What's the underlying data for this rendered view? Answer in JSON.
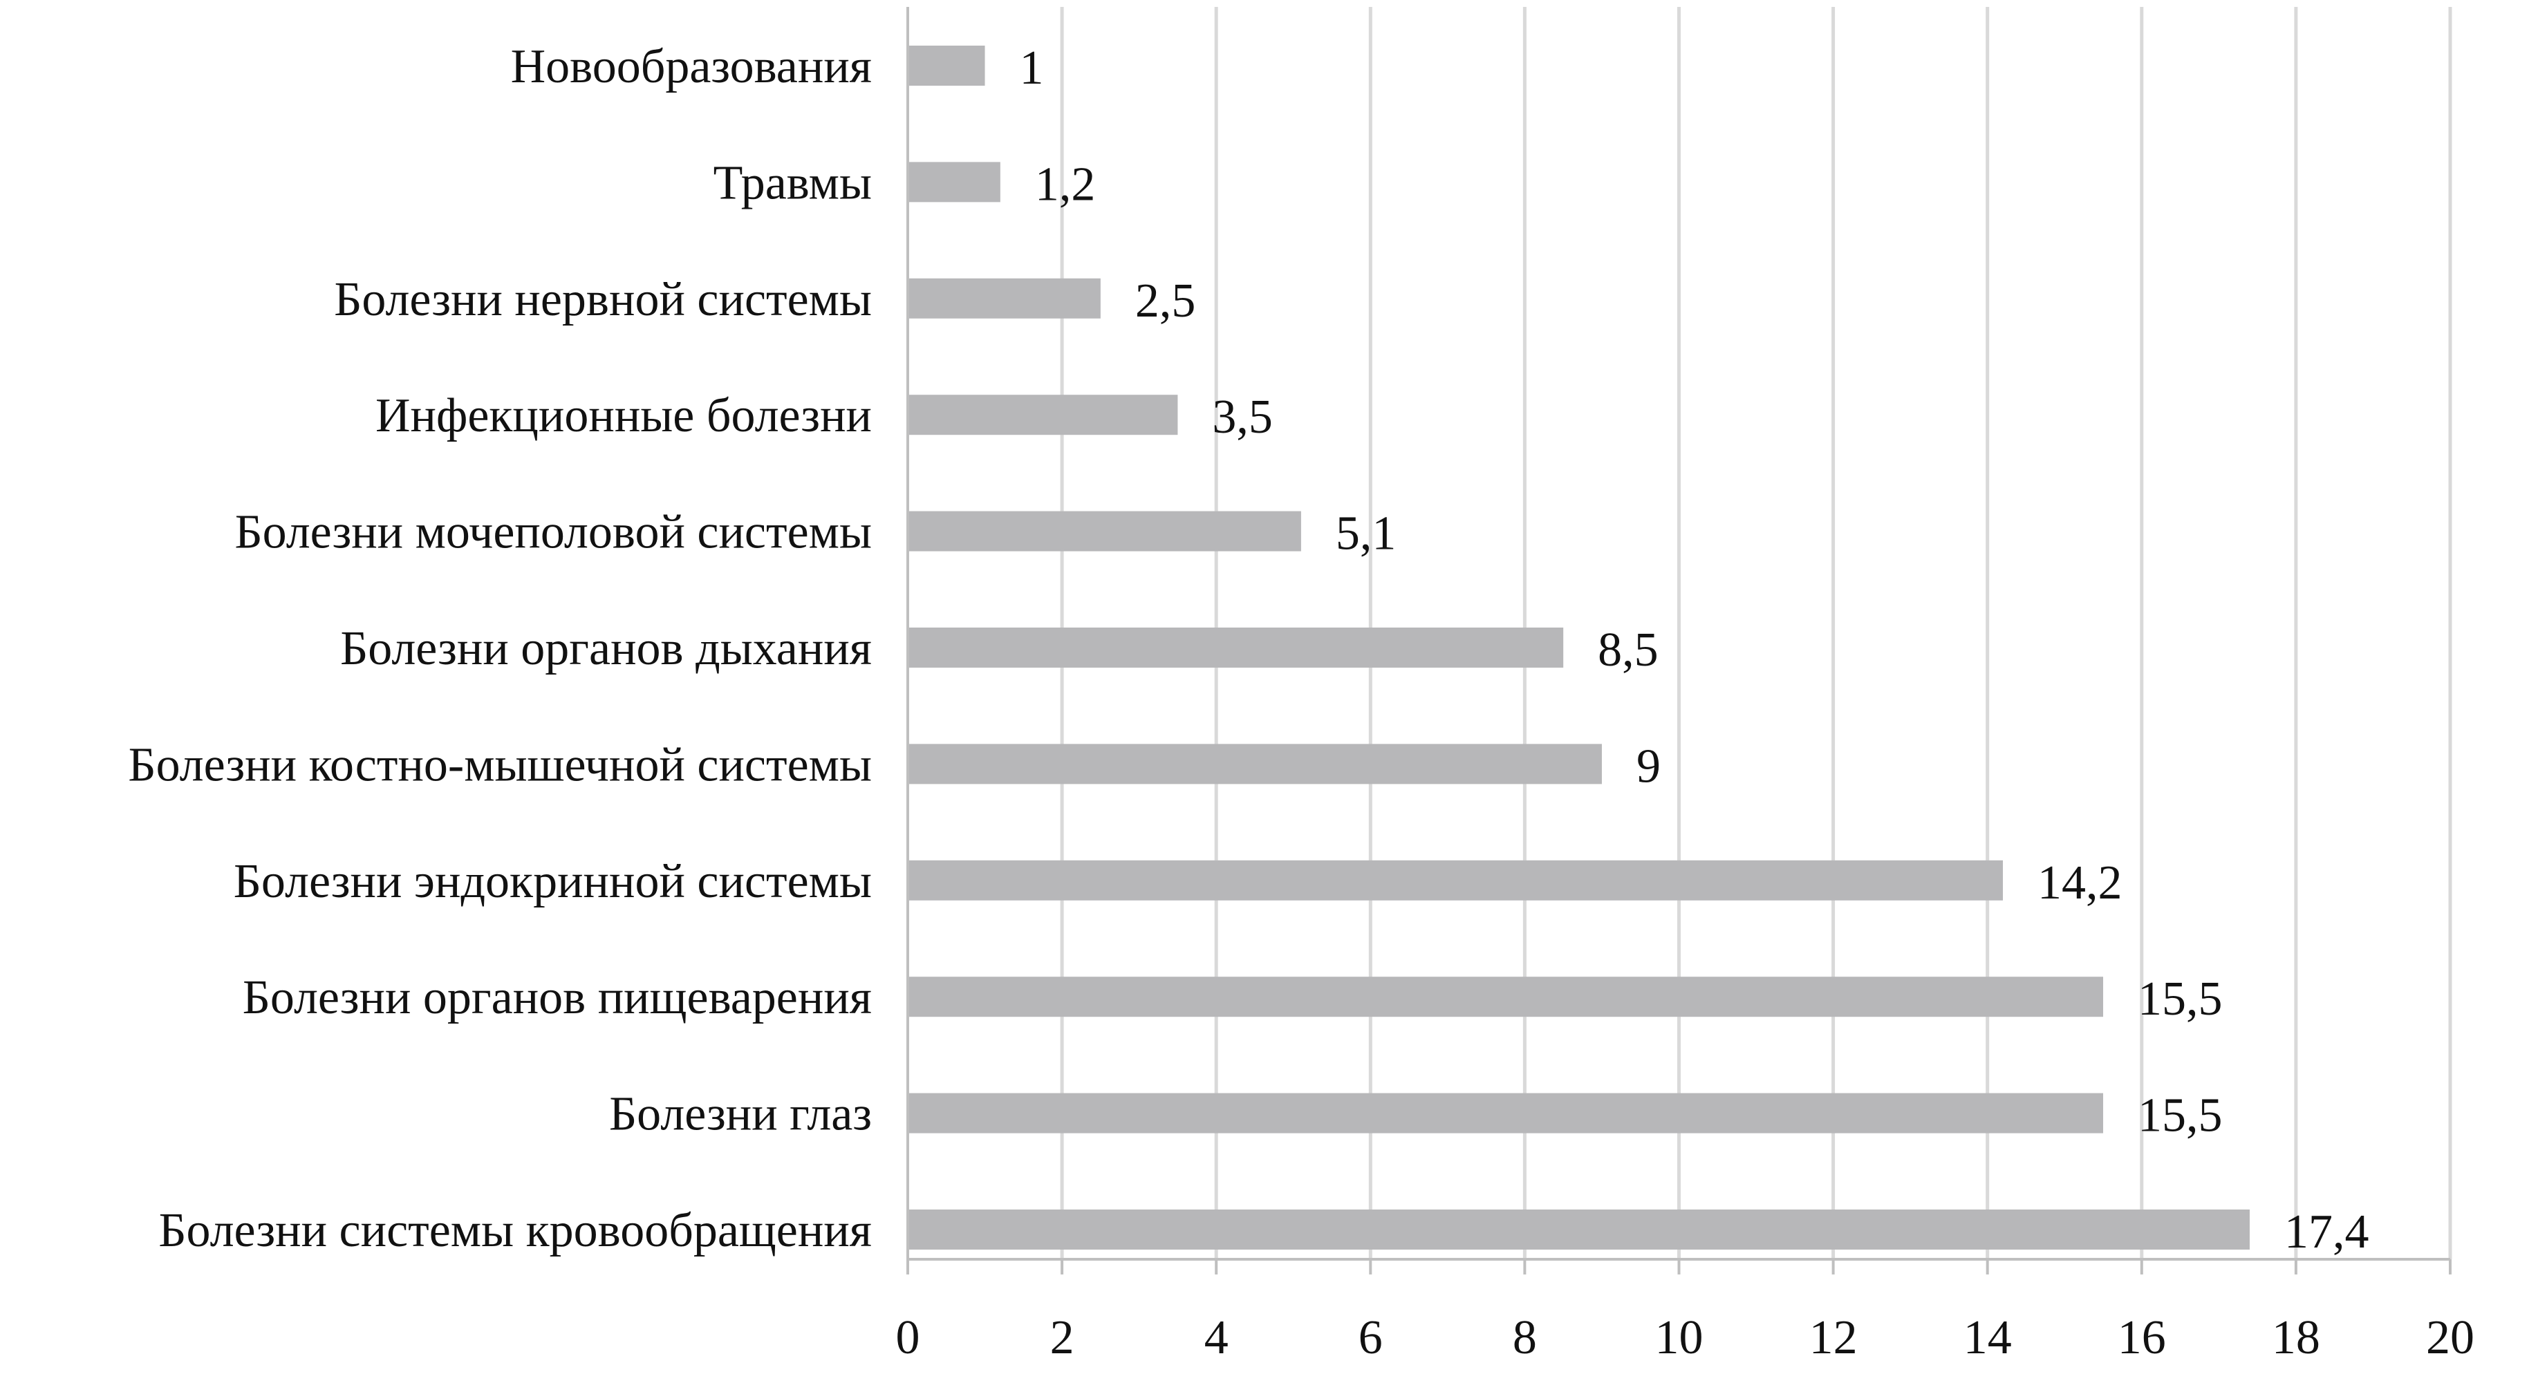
{
  "colors": {
    "bar": "#b7b7b9",
    "gridline": "#d9d9d9",
    "axis": "#bfbfbf",
    "text": "#111111",
    "background": "#ffffff"
  },
  "chart_data": {
    "type": "bar",
    "orientation": "horizontal",
    "title": "",
    "xlabel": "",
    "ylabel": "",
    "xlim": [
      0,
      20
    ],
    "x_ticks": [
      0,
      2,
      4,
      6,
      8,
      10,
      12,
      14,
      16,
      18,
      20
    ],
    "grid": true,
    "legend": "none",
    "categories": [
      "Новообразования",
      "Травмы",
      "Болезни нервной системы",
      "Инфекционные болезни",
      "Болезни мочеполовой системы",
      "Болезни органов дыхания",
      "Болезни костно-мышечной системы",
      "Болезни эндокринной системы",
      "Болезни органов пищеварения",
      "Болезни глаз",
      "Болезни системы кровообращения"
    ],
    "values": [
      1,
      1.2,
      2.5,
      3.5,
      5.1,
      8.5,
      9,
      14.2,
      15.5,
      15.5,
      17.4
    ],
    "value_labels": [
      "1",
      "1,2",
      "2,5",
      "3,5",
      "5,1",
      "8,5",
      "9",
      "14,2",
      "15,5",
      "15,5",
      "17,4"
    ]
  }
}
